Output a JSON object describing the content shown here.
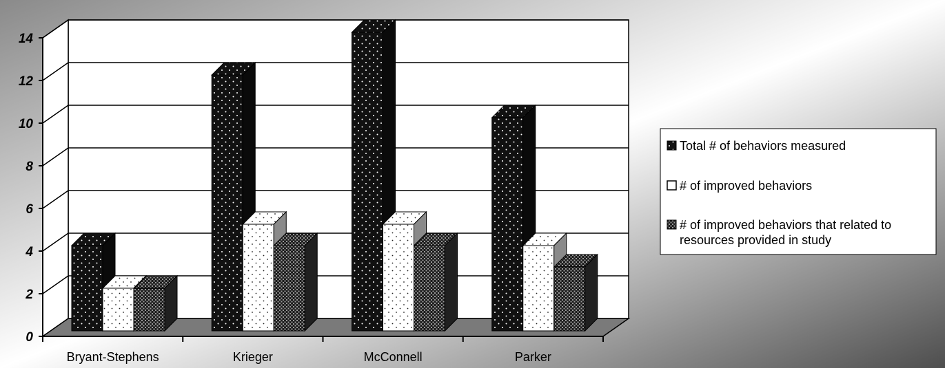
{
  "chart_data": {
    "type": "bar",
    "title": "",
    "xlabel": "",
    "ylabel": "",
    "categories": [
      "Bryant-Stephens",
      "Krieger",
      "McConnell",
      "Parker"
    ],
    "ylim": [
      0,
      14
    ],
    "yticks": [
      0,
      2,
      4,
      6,
      8,
      10,
      12,
      14
    ],
    "grid": true,
    "legend_position": "right",
    "series": [
      {
        "name": "Total # of behaviors measured",
        "values": [
          4,
          12,
          14,
          10
        ],
        "color": "#111111"
      },
      {
        "name": "# of improved behaviors",
        "values": [
          2,
          5,
          5,
          4
        ],
        "color": "#ffffff"
      },
      {
        "name": "# of improved behaviors that related to resources provided in study",
        "values": [
          2,
          4,
          4,
          3
        ],
        "color": "#2a2a2a"
      }
    ]
  }
}
